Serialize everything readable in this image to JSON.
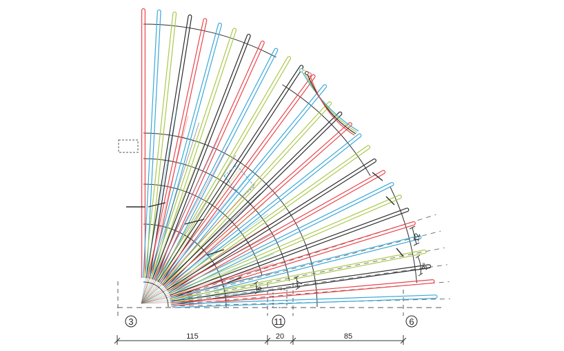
{
  "diagram": {
    "colors": {
      "red": "#e8444a",
      "blue": "#3aa7d8",
      "green": "#a9c84a",
      "black": "#2b2b2b",
      "gray": "#555555"
    },
    "axis_labels": [
      "3",
      "11",
      "6"
    ],
    "bottom_dimensions": [
      "115",
      "20",
      "85"
    ],
    "dimension_12": "12",
    "angle_3deg": "3°",
    "small_6": "6",
    "small_7": "7"
  }
}
